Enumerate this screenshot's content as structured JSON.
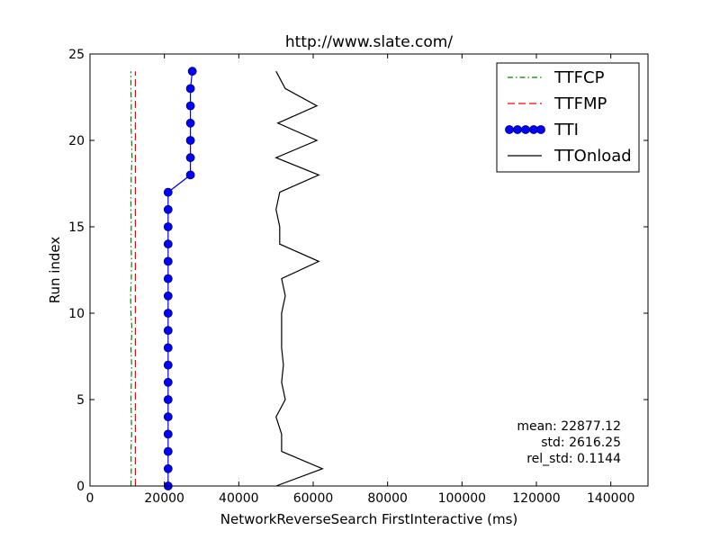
{
  "chart_data": {
    "type": "line",
    "title": "http://www.slate.com/",
    "xlabel": "NetworkReverseSearch FirstInteractive (ms)",
    "ylabel": "Run index",
    "xlim": [
      0,
      150000
    ],
    "ylim": [
      0,
      25
    ],
    "x_ticks": [
      0,
      20000,
      40000,
      60000,
      80000,
      100000,
      120000,
      140000
    ],
    "y_ticks": [
      0,
      5,
      10,
      15,
      20,
      25
    ],
    "grid": false,
    "legend_position": "top-right",
    "series": [
      {
        "name": "TTFCP",
        "color": "#008000",
        "style": "dashdot",
        "y": [
          0,
          1,
          2,
          3,
          4,
          5,
          6,
          7,
          8,
          9,
          10,
          11,
          12,
          13,
          14,
          15,
          16,
          17,
          18,
          19,
          20,
          21,
          22,
          23,
          24
        ],
        "x": [
          11000,
          11100,
          11000,
          11200,
          11100,
          11000,
          11100,
          11200,
          11000,
          11300,
          11000,
          10900,
          11100,
          11200,
          11000,
          11100,
          11000,
          11000,
          11100,
          11300,
          11200,
          11000,
          11100,
          11000,
          11000
        ]
      },
      {
        "name": "TTFMP",
        "color": "#ff0000",
        "style": "dashed",
        "y": [
          0,
          1,
          2,
          3,
          4,
          5,
          6,
          7,
          8,
          9,
          10,
          11,
          12,
          13,
          14,
          15,
          16,
          17,
          18,
          19,
          20,
          21,
          22,
          23,
          24
        ],
        "x": [
          12200,
          12200,
          12200,
          12200,
          12200,
          12200,
          12200,
          12200,
          12200,
          12200,
          12200,
          12200,
          12200,
          12200,
          12200,
          12200,
          12200,
          12200,
          12200,
          12200,
          12200,
          12200,
          12200,
          12200,
          12200
        ]
      },
      {
        "name": "TTI",
        "color": "#0000ff",
        "style": "solid-markers",
        "y": [
          0,
          1,
          2,
          3,
          4,
          5,
          6,
          7,
          8,
          9,
          10,
          11,
          12,
          13,
          14,
          15,
          16,
          17,
          18,
          19,
          20,
          21,
          22,
          23,
          24
        ],
        "x": [
          21000,
          21000,
          21000,
          21000,
          21000,
          21000,
          21000,
          21000,
          21000,
          21000,
          21000,
          21000,
          21000,
          21000,
          21000,
          21000,
          21000,
          21000,
          27000,
          27000,
          27000,
          27000,
          27000,
          27000,
          27500
        ]
      },
      {
        "name": "TTOnload",
        "color": "#000000",
        "style": "solid",
        "y": [
          0,
          1,
          2,
          3,
          4,
          5,
          6,
          7,
          8,
          9,
          10,
          11,
          12,
          13,
          14,
          15,
          16,
          17,
          18,
          19,
          20,
          21,
          22,
          23,
          24
        ],
        "x": [
          50000,
          62500,
          51500,
          51500,
          50000,
          52500,
          51500,
          52000,
          51500,
          51500,
          51500,
          52500,
          51500,
          61500,
          51000,
          51000,
          50000,
          51000,
          61500,
          50000,
          61000,
          50500,
          61000,
          52500,
          50000
        ]
      }
    ],
    "annotations": [
      "mean: 22877.12",
      "std: 2616.25",
      "rel_std: 0.1144"
    ]
  }
}
